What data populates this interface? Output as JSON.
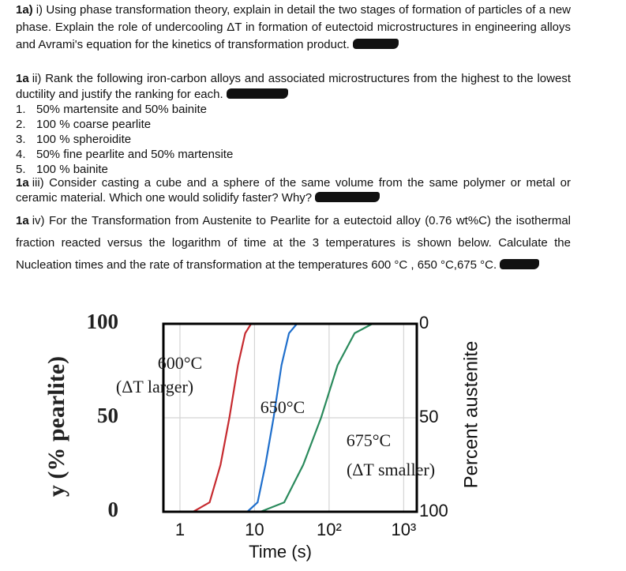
{
  "questions": [
    {
      "label": "1a)",
      "text": "i) Using phase transformation theory, explain in detail the two stages of formation of particles of a new phase. Explain the role of undercooling ΔT in formation of eutectoid microstructures in engineering alloys and Avrami's equation for the kinetics of transformation product."
    },
    {
      "label": "1a",
      "text": "ii) Rank the following iron-carbon alloys and associated microstructures from the highest to the lowest ductility and justify the ranking for each."
    },
    {
      "label": "1a",
      "text": "iii) Consider casting a cube and a sphere of the same volume from the same polymer or metal or ceramic material. Which one would solidify faster? Why?"
    },
    {
      "label": "1a",
      "text": "iv) For the Transformation from Austenite to Pearlite for a eutectoid alloy (0.76 wt%C) the isothermal fraction reacted versus the logarithm of time at the 3 temperatures is shown below. Calculate the Nucleation times and the rate of transformation at the temperatures 600 °C , 650 °C,675 °C."
    }
  ],
  "ranking_list": [
    {
      "number": "1.",
      "text": "50% martensite and 50% bainite"
    },
    {
      "number": "2.",
      "text": "100 % coarse pearlite"
    },
    {
      "number": "3.",
      "text": "100 % spheroidite"
    },
    {
      "number": "4.",
      "text": "50% fine pearlite and 50% martensite"
    },
    {
      "number": "5.",
      "text": "100 % bainite"
    }
  ],
  "figure": {
    "type": "line",
    "y_label": "y (% pearlite)",
    "y2_label": "Percent austenite",
    "x_label": "Time (s)",
    "log_x": true,
    "xlim": [
      0.6,
      1500
    ],
    "xticks": [
      1,
      10,
      {
        "value": 100,
        "label": "10²"
      },
      {
        "value": 1000,
        "label": "10³"
      }
    ],
    "ylim": [
      0,
      100
    ],
    "yticks": [
      0,
      50,
      100
    ],
    "y2lim": [
      100,
      0
    ],
    "y2ticks": [
      0,
      50,
      100
    ],
    "annotations": [
      "600°C",
      "(ΔT larger)",
      "650°C",
      "675°C",
      "(ΔT smaller)"
    ],
    "series": [
      {
        "name": "600°C",
        "color": "#c62a2f",
        "x": [
          1.5,
          2.5,
          3.5,
          4.6,
          6,
          7.5,
          9
        ],
        "values": [
          0,
          5,
          25,
          50,
          78,
          95,
          100
        ]
      },
      {
        "name": "650°C",
        "color": "#1f6fcc",
        "x": [
          8,
          11,
          14,
          18,
          23,
          29,
          37
        ],
        "values": [
          0,
          5,
          25,
          50,
          78,
          95,
          100
        ]
      },
      {
        "name": "675°C",
        "color": "#2a8a5c",
        "x": [
          12,
          25,
          45,
          78,
          130,
          220,
          380
        ],
        "values": [
          0,
          5,
          25,
          50,
          78,
          95,
          100
        ]
      }
    ]
  }
}
